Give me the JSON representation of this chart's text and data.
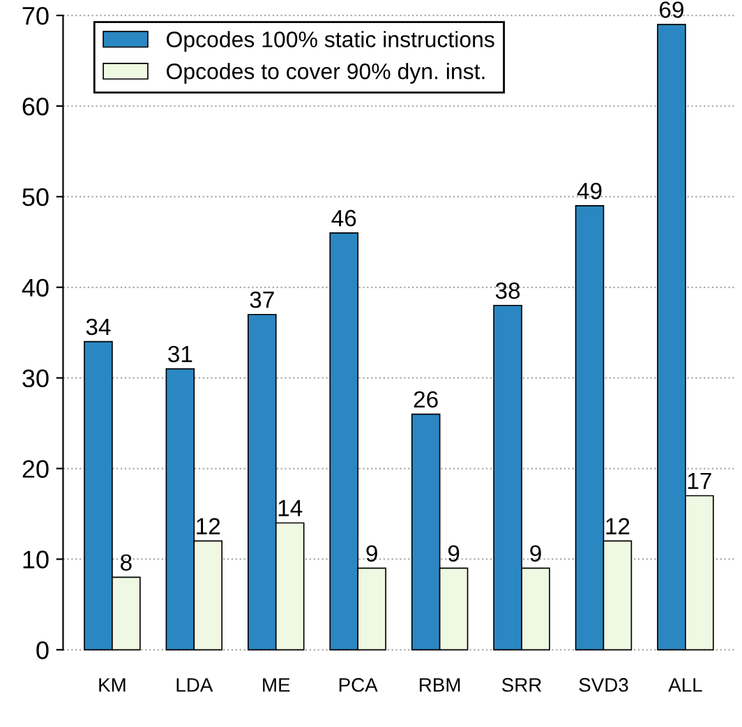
{
  "chart_data": {
    "type": "bar",
    "categories": [
      "KM",
      "LDA",
      "ME",
      "PCA",
      "RBM",
      "SRR",
      "SVD3",
      "ALL"
    ],
    "series": [
      {
        "name": "Opcodes 100% static instructions",
        "color": "#2b87c1",
        "values": [
          34,
          31,
          37,
          46,
          26,
          38,
          49,
          69
        ]
      },
      {
        "name": "Opcodes to cover 90% dyn. inst.",
        "color": "#eff8e2",
        "values": [
          8,
          12,
          14,
          9,
          9,
          9,
          12,
          17
        ]
      }
    ],
    "ylim": [
      0,
      70
    ],
    "yticks": [
      0,
      10,
      20,
      30,
      40,
      50,
      60,
      70
    ],
    "grid": "y",
    "legend": "top left",
    "data_labels": true
  }
}
